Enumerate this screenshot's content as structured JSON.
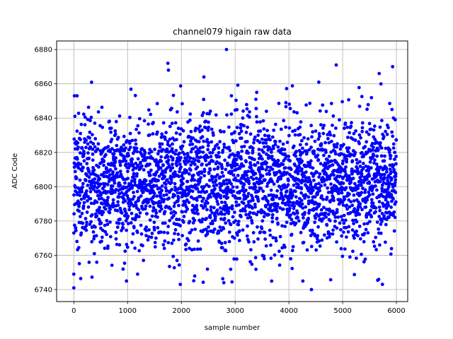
{
  "chart_data": {
    "type": "scatter",
    "title": "channel079 higain raw data",
    "xlabel": "sample number",
    "ylabel": "ADC Code",
    "xlim": [
      -320,
      6210
    ],
    "ylim": [
      6733,
      6885
    ],
    "xticks": [
      0,
      1000,
      2000,
      3000,
      4000,
      5000,
      6000
    ],
    "yticks": [
      6740,
      6760,
      6780,
      6800,
      6820,
      6840,
      6860,
      6880
    ],
    "grid": true,
    "marker_color": "#0000ff",
    "series": [
      {
        "n_samples": 6000,
        "mean": 6802,
        "std": 19,
        "min": 6740,
        "max": 6880,
        "extremes": [
          {
            "x": 0,
            "y": 6741
          },
          {
            "x": 0,
            "y": 6749
          },
          {
            "x": 10,
            "y": 6853
          },
          {
            "x": 60,
            "y": 6853
          },
          {
            "x": 980,
            "y": 6745
          },
          {
            "x": 1750,
            "y": 6872
          },
          {
            "x": 1760,
            "y": 6868
          },
          {
            "x": 1980,
            "y": 6743
          },
          {
            "x": 2420,
            "y": 6864
          },
          {
            "x": 2840,
            "y": 6880
          },
          {
            "x": 2790,
            "y": 6744
          },
          {
            "x": 4260,
            "y": 6745
          },
          {
            "x": 4420,
            "y": 6740
          },
          {
            "x": 4880,
            "y": 6871
          },
          {
            "x": 5680,
            "y": 6866
          },
          {
            "x": 5740,
            "y": 6743
          },
          {
            "x": 5930,
            "y": 6870
          }
        ]
      }
    ]
  }
}
